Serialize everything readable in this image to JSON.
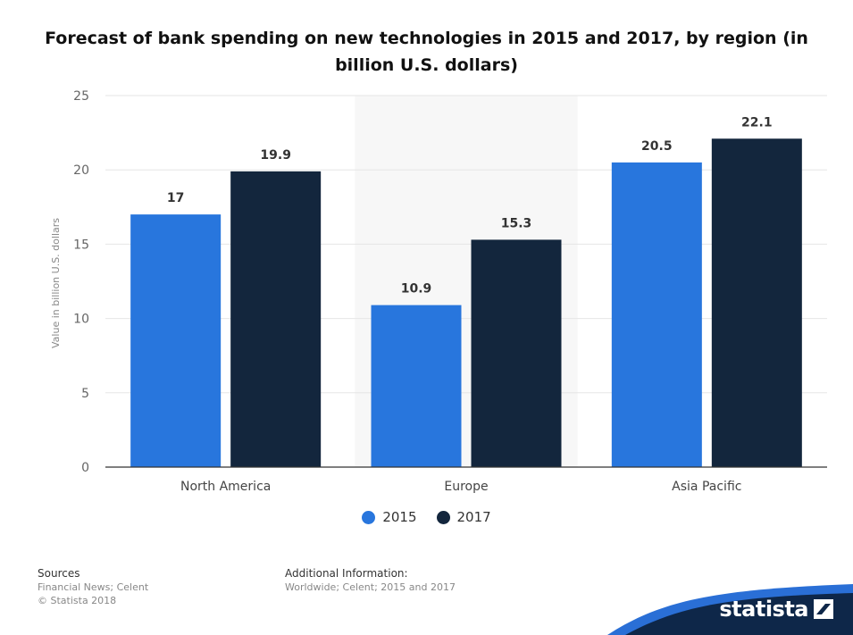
{
  "chart_data": {
    "type": "bar",
    "title": "Forecast of bank spending on new technologies in 2015 and 2017, by region (in billion U.S. dollars)",
    "xlabel": "",
    "ylabel": "Value in billion U.S. dollars",
    "categories": [
      "North America",
      "Europe",
      "Asia Pacific"
    ],
    "series": [
      {
        "name": "2015",
        "values": [
          17,
          10.9,
          20.5
        ],
        "color": "#2876dd"
      },
      {
        "name": "2017",
        "values": [
          19.9,
          15.3,
          22.1
        ],
        "color": "#13263d"
      }
    ],
    "data_labels": [
      [
        "17",
        "19.9"
      ],
      [
        "10.9",
        "15.3"
      ],
      [
        "20.5",
        "22.1"
      ]
    ],
    "ylim": [
      0,
      25
    ],
    "yticks": [
      0,
      5,
      10,
      15,
      20,
      25
    ],
    "ytick_labels": [
      "0",
      "5",
      "10",
      "15",
      "20",
      "25"
    ],
    "grid": true,
    "legend_position": "bottom-center",
    "highlight_category_background": "#f7f7f7"
  },
  "legend": {
    "items": [
      {
        "label": "2015",
        "color": "#2876dd"
      },
      {
        "label": "2017",
        "color": "#13263d"
      }
    ]
  },
  "footer": {
    "sources_heading": "Sources",
    "sources_line1": "Financial News; Celent",
    "sources_line2": "© Statista 2018",
    "additional_heading": "Additional Information:",
    "additional_text": "Worldwide; Celent; 2015 and 2017"
  },
  "brand": {
    "name": "statista",
    "icon": "statista-logo-icon",
    "color": "#0e2749"
  }
}
